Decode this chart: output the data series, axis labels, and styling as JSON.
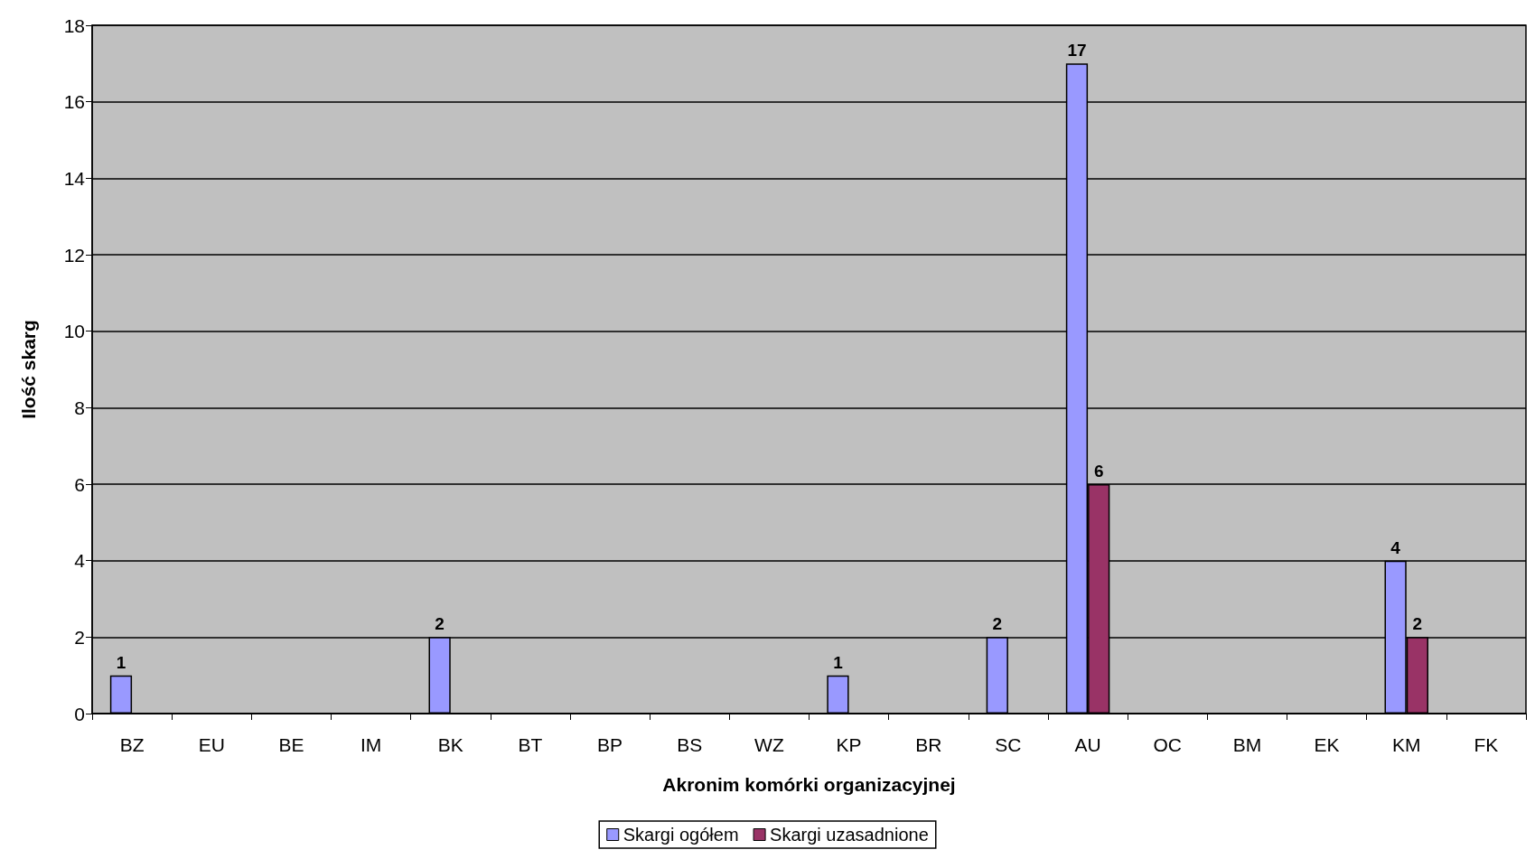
{
  "chart_data": {
    "type": "bar",
    "categories": [
      "BZ",
      "EU",
      "BE",
      "IM",
      "BK",
      "BT",
      "BP",
      "BS",
      "WZ",
      "KP",
      "BR",
      "SC",
      "AU",
      "OC",
      "BM",
      "EK",
      "KM",
      "FK"
    ],
    "series": [
      {
        "name": "Skargi ogółem",
        "color": "#9999ff",
        "values": [
          1,
          0,
          0,
          0,
          2,
          0,
          0,
          0,
          0,
          1,
          0,
          2,
          17,
          0,
          0,
          0,
          4,
          0
        ],
        "value_labels": [
          "1",
          null,
          null,
          null,
          "2",
          null,
          null,
          null,
          null,
          "1",
          null,
          "2",
          "17",
          null,
          null,
          null,
          "4",
          null
        ]
      },
      {
        "name": "Skargi uzasadnione",
        "color": "#993366",
        "values": [
          0,
          0,
          0,
          0,
          0,
          0,
          0,
          0,
          0,
          0,
          0,
          0,
          6,
          0,
          0,
          0,
          2,
          0
        ],
        "value_labels": [
          null,
          null,
          null,
          null,
          null,
          null,
          null,
          null,
          null,
          null,
          null,
          null,
          "6",
          null,
          null,
          null,
          "2",
          null
        ]
      }
    ],
    "xlabel": "Akronim komórki organizacyjnej",
    "ylabel": "Ilość skarg",
    "ylim": [
      0,
      18
    ],
    "yticks": [
      0,
      2,
      4,
      6,
      8,
      10,
      12,
      14,
      16,
      18
    ],
    "grid": "y",
    "legend": "bottom"
  }
}
